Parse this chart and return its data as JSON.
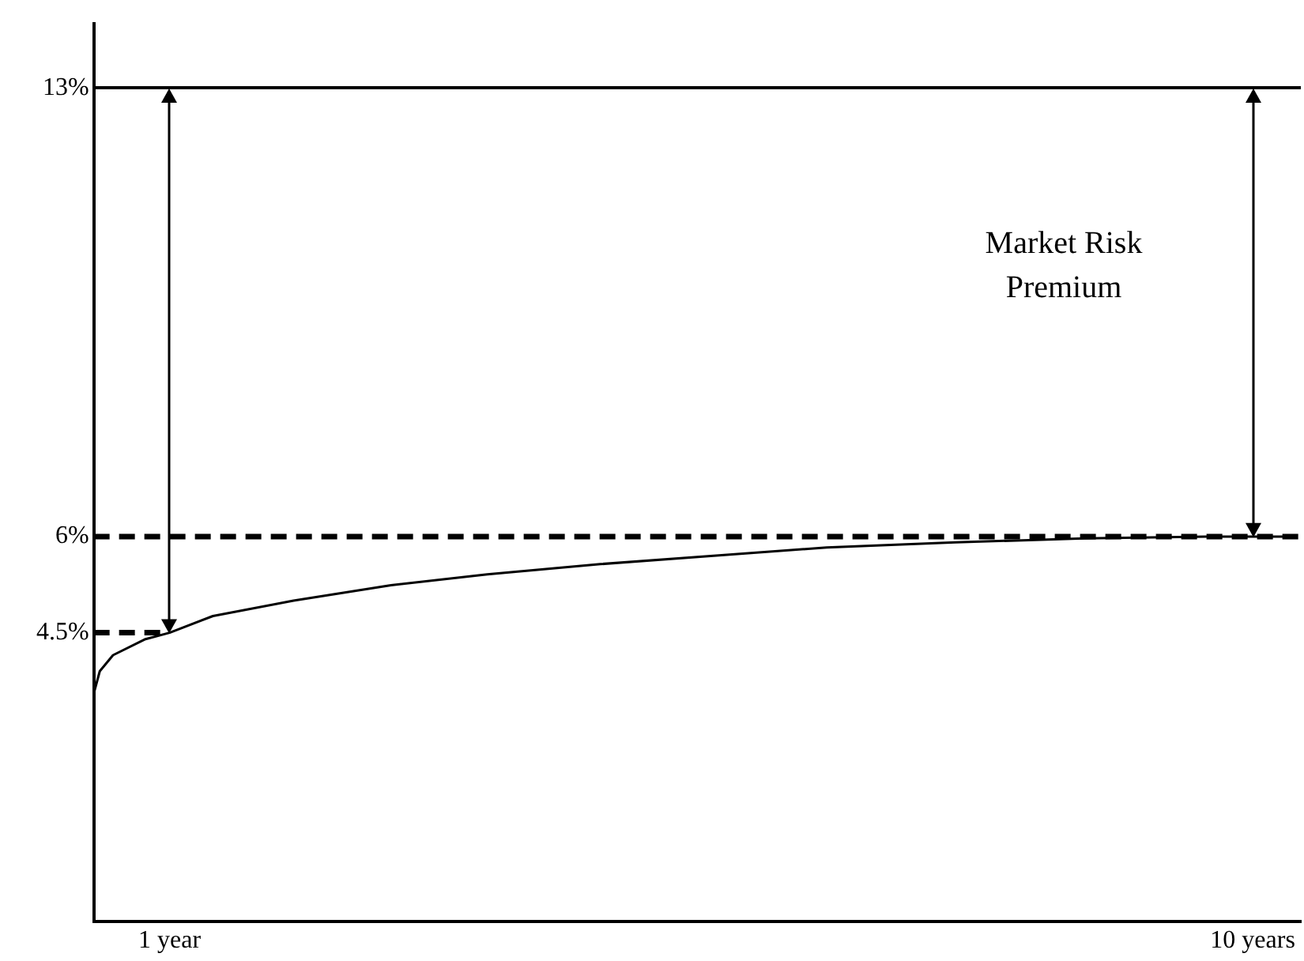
{
  "chart_data": {
    "type": "line",
    "x": [
      0.37,
      0.42,
      0.53,
      0.8,
      1,
      1.36,
      2.03,
      2.84,
      3.64,
      4.58,
      5.52,
      6.46,
      7.53,
      8.6,
      9.67,
      10.3
    ],
    "series": [
      {
        "color": "#000000",
        "line_style": "solid",
        "values": [
          3.55,
          3.9,
          4.15,
          4.4,
          4.5,
          4.76,
          5.0,
          5.24,
          5.41,
          5.57,
          5.7,
          5.83,
          5.91,
          5.97,
          6.0,
          6.0
        ]
      },
      {
        "color": "#000000",
        "line_style": "dashed",
        "x": [
          0.37,
          1
        ],
        "values": [
          4.5,
          4.5
        ]
      }
    ],
    "xlim": [
      0.37,
      10.4
    ],
    "xticks": [
      {
        "value": 1,
        "label": "1 year"
      },
      {
        "value": 10,
        "label": "10 years"
      }
    ],
    "ylim": [
      0,
      14
    ],
    "yticks": [
      {
        "value": 4.5,
        "label": "4.5%"
      },
      {
        "value": 6,
        "label": "6%"
      },
      {
        "value": 13,
        "label": "13%"
      }
    ],
    "ref_lines": [
      {
        "axis": "y",
        "value": 13,
        "label": null,
        "color": "#000000",
        "line_style": "solid"
      },
      {
        "axis": "y",
        "value": 6,
        "label": null,
        "color": "#000000",
        "line_style": "dashed"
      }
    ],
    "annotations": [
      "Market Risk Premium"
    ],
    "marker": "none",
    "grid": false,
    "legend": false
  }
}
